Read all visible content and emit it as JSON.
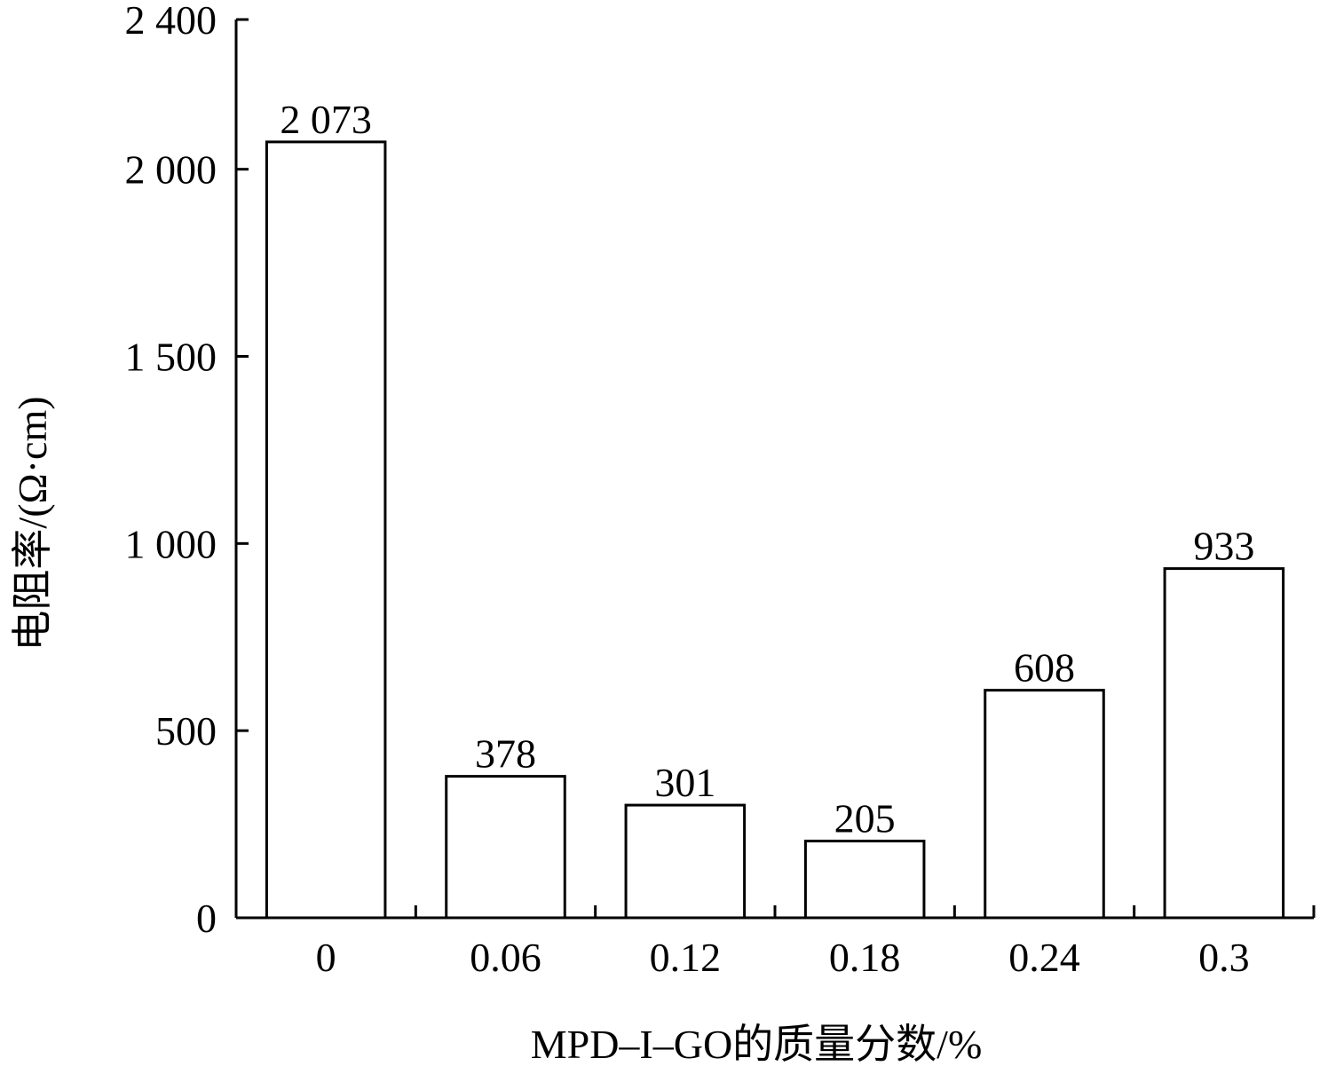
{
  "chart_data": {
    "type": "bar",
    "title": "",
    "xlabel": "MPD–I–GO的质量分数/%",
    "ylabel": "电阻率/(Ω·cm)",
    "categories": [
      "0",
      "0.06",
      "0.12",
      "0.18",
      "0.24",
      "0.3"
    ],
    "values": [
      2073,
      378,
      301,
      205,
      608,
      933
    ],
    "value_labels": [
      "2 073",
      "378",
      "301",
      "205",
      "608",
      "933"
    ],
    "ylim": [
      0,
      2400
    ],
    "yticks": [
      0,
      500,
      1000,
      1500,
      2000,
      2400
    ],
    "ytick_labels": [
      "0",
      "500",
      "1 000",
      "1 500",
      "2 000",
      "2 400"
    ],
    "grid": false,
    "bar_fill": "#ffffff",
    "bar_stroke": "#000000"
  }
}
